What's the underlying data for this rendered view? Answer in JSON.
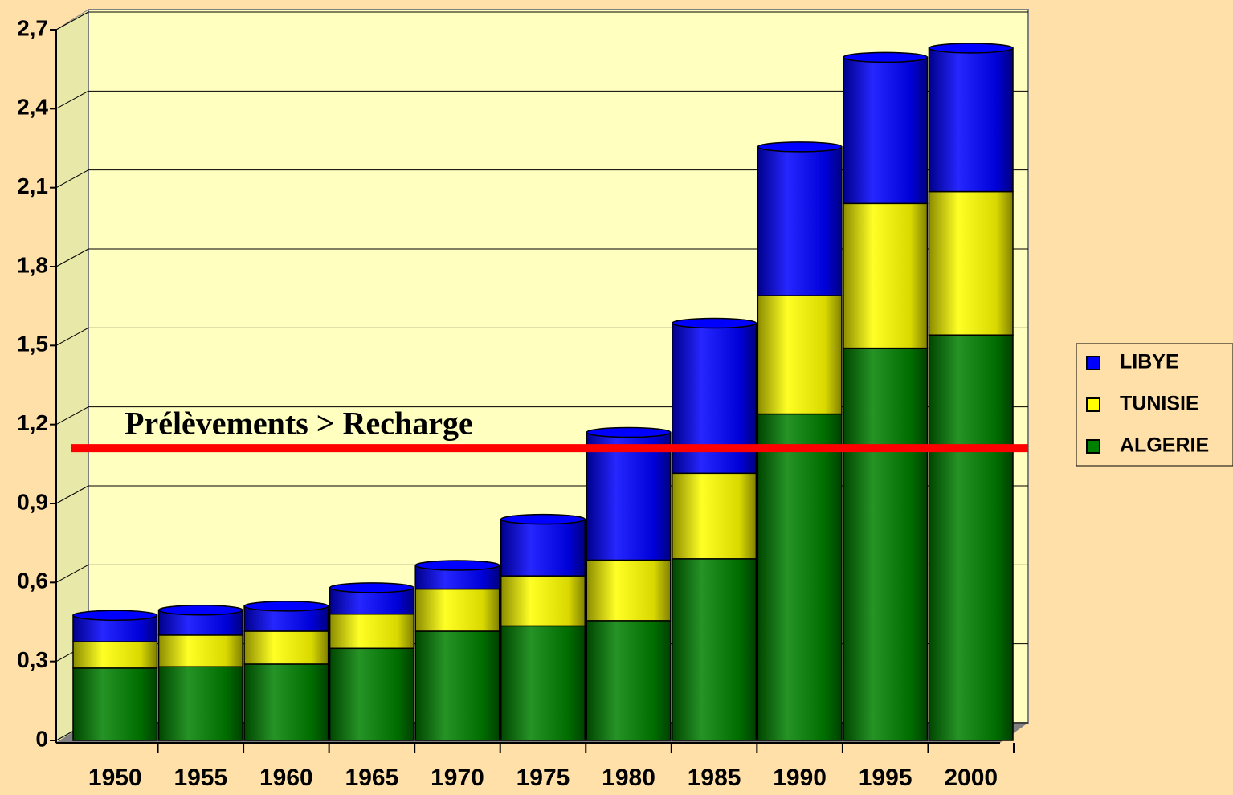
{
  "chart_data": {
    "type": "bar",
    "stacked": true,
    "categories": [
      "1950",
      "1955",
      "1960",
      "1965",
      "1970",
      "1975",
      "1980",
      "1985",
      "1990",
      "1995",
      "2000"
    ],
    "series": [
      {
        "name": "ALGERIE",
        "color": "#008000",
        "values": [
          0.275,
          0.28,
          0.29,
          0.35,
          0.415,
          0.435,
          0.455,
          0.69,
          1.24,
          1.49,
          1.54
        ]
      },
      {
        "name": "TUNISIE",
        "color": "#ffff00",
        "values": [
          0.1,
          0.12,
          0.125,
          0.13,
          0.16,
          0.19,
          0.23,
          0.325,
          0.45,
          0.55,
          0.545
        ]
      },
      {
        "name": "LIBYE",
        "color": "#0000ff",
        "values": [
          0.1,
          0.095,
          0.095,
          0.1,
          0.09,
          0.215,
          0.485,
          0.57,
          0.565,
          0.555,
          0.545
        ]
      }
    ],
    "ylim": [
      0,
      2.7
    ],
    "yticks": [
      0,
      {
        "value": 0.3,
        "label": "0,3"
      },
      {
        "value": 0.6,
        "label": "0,6"
      },
      {
        "value": 0.9,
        "label": "0,9"
      },
      {
        "value": 1.2,
        "label": "1,2"
      },
      {
        "value": 1.5,
        "label": "1,5"
      },
      {
        "value": 1.8,
        "label": "1,8"
      },
      {
        "value": 2.1,
        "label": "2,1"
      },
      {
        "value": 2.4,
        "label": "2,4"
      },
      {
        "value": 2.7,
        "label": "2,7"
      }
    ],
    "grid": true,
    "reference_line": {
      "value": 1.11,
      "color": "#ff0000",
      "label": "Prélèvements > Recharge"
    },
    "legend": "right"
  }
}
